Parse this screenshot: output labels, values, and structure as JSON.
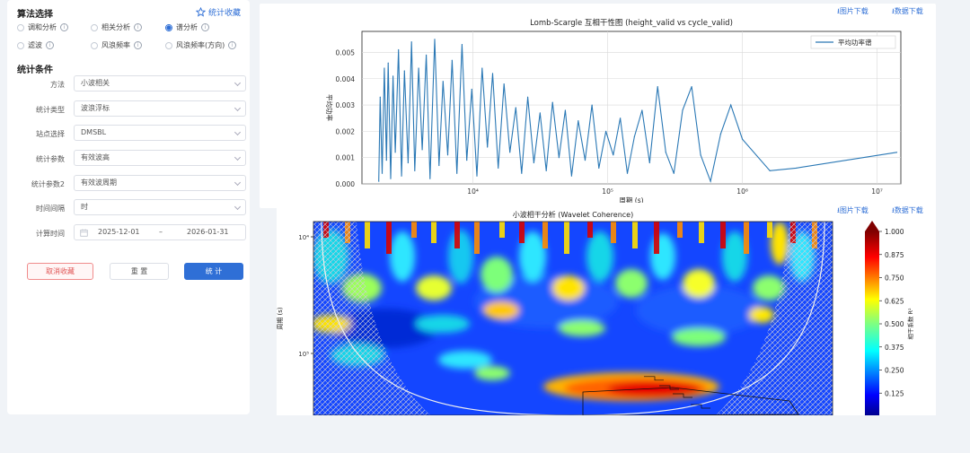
{
  "algorithm": {
    "title": "算法选择",
    "favorite_link": "统计收藏",
    "options": [
      {
        "label": "调和分析",
        "selected": false
      },
      {
        "label": "相关分析",
        "selected": false
      },
      {
        "label": "谱分析",
        "selected": true
      },
      {
        "label": "滤波",
        "selected": false
      },
      {
        "label": "风浪频率",
        "selected": false
      },
      {
        "label": "风浪频率(方向)",
        "selected": false
      }
    ]
  },
  "conditions": {
    "title": "统计条件",
    "method": {
      "label": "方法",
      "value": "小波相关"
    },
    "stat_type": {
      "label": "统计类型",
      "value": "波浪浮标"
    },
    "station": {
      "label": "站点选择",
      "value": "DMSBL"
    },
    "param1": {
      "label": "统计参数",
      "value": "有效波高"
    },
    "param2": {
      "label": "统计参数2",
      "value": "有效波周期"
    },
    "interval": {
      "label": "时间间隔",
      "value": "时"
    },
    "time": {
      "label": "计算时间",
      "start": "2025-12-01",
      "sep": "–",
      "end": "2026-01-31"
    }
  },
  "buttons": {
    "cancel_fav": "取消收藏",
    "reset": "重 置",
    "stat": "统 计"
  },
  "downloads": {
    "image": "图片下载",
    "data": "数据下载"
  },
  "chart_data": [
    {
      "type": "line",
      "title": "Lomb-Scargle 互相干性图 (height_valid vs cycle_valid)",
      "xlabel": "周期 (s)",
      "ylabel": "平均功率",
      "xscale": "log",
      "xlim": [
        1500,
        15000000
      ],
      "ylim": [
        0,
        0.0058
      ],
      "ytick_labels": [
        "0.000",
        "0.001",
        "0.002",
        "0.003",
        "0.004",
        "0.005"
      ],
      "xtick_labels": [
        "10⁴",
        "10⁵",
        "10⁶",
        "10⁷"
      ],
      "legend_position": "top-right",
      "grid": true,
      "series": [
        {
          "name": "平均功率谱",
          "color": "#2a78b5",
          "x": [
            2000,
            2050,
            2120,
            2200,
            2280,
            2350,
            2450,
            2550,
            2650,
            2800,
            2950,
            3100,
            3300,
            3500,
            3700,
            3950,
            4200,
            4500,
            4800,
            5200,
            5600,
            6000,
            6500,
            7000,
            7600,
            8300,
            9000,
            9800,
            10700,
            11700,
            12800,
            14000,
            15400,
            17000,
            18800,
            20800,
            23000,
            25500,
            28300,
            31500,
            35000,
            39000,
            43500,
            48500,
            54000,
            60500,
            68000,
            76500,
            86000,
            97000,
            110000,
            124000,
            140000,
            158000,
            180000,
            205000,
            235000,
            270000,
            310000,
            360000,
            420000,
            490000,
            580000,
            690000,
            820000,
            1000000,
            1600000,
            2500000,
            14000000
          ],
          "values": [
            0.0001,
            0.0033,
            0.0004,
            0.0044,
            0.0009,
            0.0046,
            0.0002,
            0.0041,
            0.0012,
            0.0051,
            0.0003,
            0.0043,
            0.0008,
            0.0054,
            0.0005,
            0.0044,
            0.0013,
            0.0049,
            0.0002,
            0.0055,
            0.0007,
            0.0039,
            0.0011,
            0.0047,
            0.0004,
            0.0053,
            0.0009,
            0.0036,
            0.0003,
            0.0044,
            0.0014,
            0.0042,
            0.0006,
            0.0038,
            0.0012,
            0.0029,
            0.0004,
            0.0033,
            0.0008,
            0.0027,
            0.0005,
            0.0031,
            0.001,
            0.0028,
            0.0003,
            0.0024,
            0.0009,
            0.003,
            0.0006,
            0.002,
            0.0011,
            0.0025,
            0.0004,
            0.0018,
            0.0028,
            0.0008,
            0.0037,
            0.0012,
            0.0004,
            0.0028,
            0.0037,
            0.0011,
            0.0001,
            0.0019,
            0.003,
            0.0017,
            0.0005,
            0.0006,
            0.0012
          ]
        }
      ]
    },
    {
      "type": "heatmap",
      "title": "小波相干分析 (Wavelet Coherence)",
      "xlabel": "",
      "ylabel": "周期 (s)",
      "ytick_labels": [
        "10⁴",
        "10⁵"
      ],
      "colorbar": {
        "label": "相干系数 R²",
        "ticks": [
          "0.125",
          "0.250",
          "0.375",
          "0.500",
          "0.625",
          "0.750",
          "0.875",
          "1.000"
        ],
        "colormap": "jet"
      }
    }
  ]
}
